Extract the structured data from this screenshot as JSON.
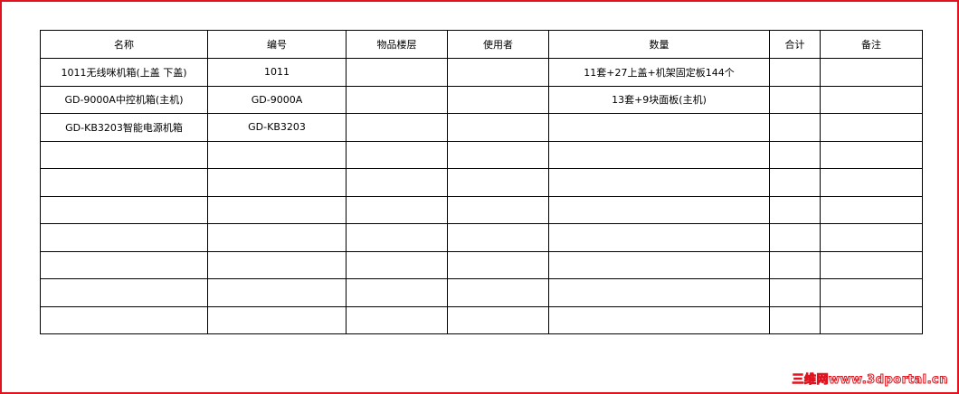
{
  "table": {
    "headers": [
      "名称",
      "编号",
      "物品楼层",
      "使用者",
      "数量",
      "合计",
      "备注"
    ],
    "rows": [
      [
        "1011无线咪机箱(上盖 下盖)",
        "1011",
        "",
        "",
        "11套+27上盖+机架固定板144个",
        "",
        ""
      ],
      [
        "GD-9000A中控机箱(主机)",
        "GD-9000A",
        "",
        "",
        "13套+9块面板(主机)",
        "",
        ""
      ],
      [
        "GD-KB3203智能电源机箱",
        "GD-KB3203",
        "",
        "",
        "",
        "",
        ""
      ],
      [
        "",
        "",
        "",
        "",
        "",
        "",
        ""
      ],
      [
        "",
        "",
        "",
        "",
        "",
        "",
        ""
      ],
      [
        "",
        "",
        "",
        "",
        "",
        "",
        ""
      ],
      [
        "",
        "",
        "",
        "",
        "",
        "",
        ""
      ],
      [
        "",
        "",
        "",
        "",
        "",
        "",
        ""
      ],
      [
        "",
        "",
        "",
        "",
        "",
        "",
        ""
      ],
      [
        "",
        "",
        "",
        "",
        "",
        "",
        ""
      ]
    ]
  },
  "watermark": "三维网www.3dportal.cn",
  "colors": {
    "border": "#e0141e"
  }
}
